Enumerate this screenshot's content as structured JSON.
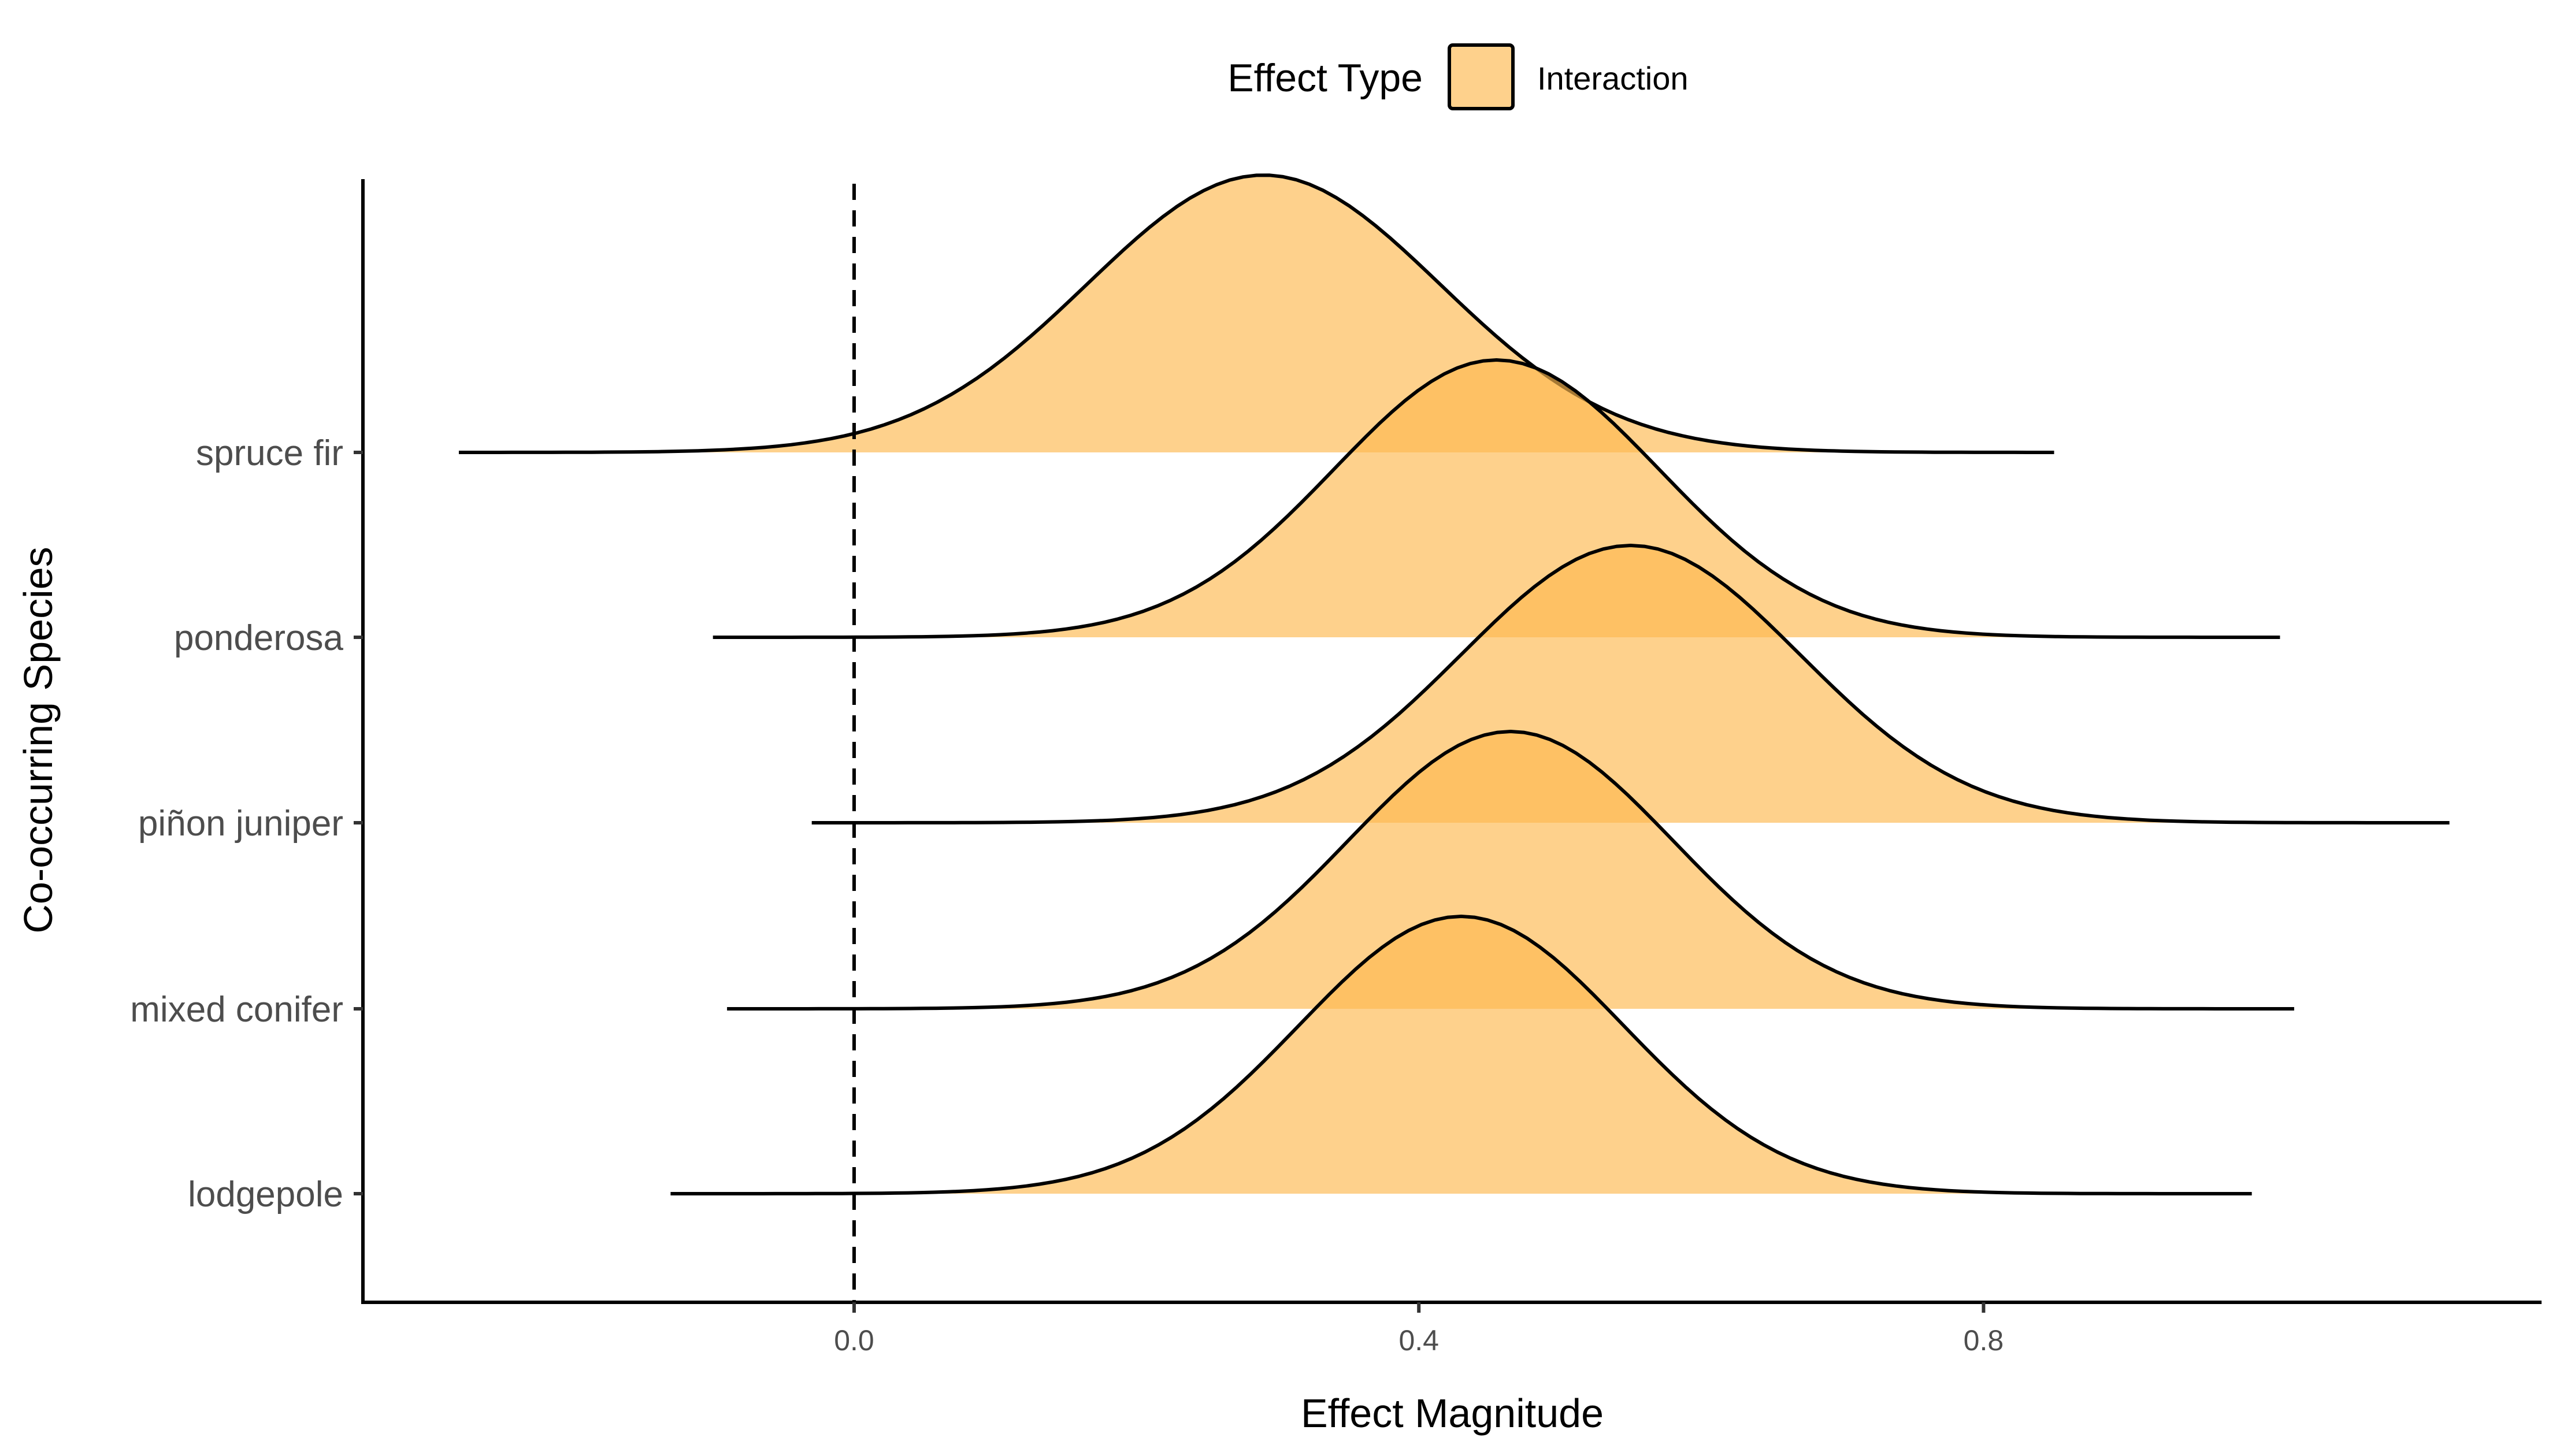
{
  "chart_data": {
    "type": "ridgeline",
    "title": "",
    "xlabel": "Effect Magnitude",
    "ylabel": "Co-occurring Species",
    "xlim": [
      -0.35,
      1.2
    ],
    "x_ticks": [
      0.0,
      0.4,
      0.8
    ],
    "x_tick_labels": [
      "0.0",
      "0.4",
      "0.8"
    ],
    "reference_line": {
      "x": 0.0,
      "style": "dashed"
    },
    "legend": {
      "title": "Effect Type",
      "position": "top",
      "entries": [
        {
          "label": "Interaction",
          "color": "#fdb94e"
        }
      ]
    },
    "fill_color": "#fdb94e",
    "fill_opacity": 0.65,
    "grid": false,
    "categories": [
      "lodgepole",
      "mixed conifer",
      "piñon juniper",
      "ponderosa",
      "spruce fir"
    ],
    "series": [
      {
        "name": "spruce fir",
        "min": -0.28,
        "max": 0.85,
        "mode": 0.29,
        "sd": 0.125
      },
      {
        "name": "ponderosa",
        "min": -0.1,
        "max": 1.01,
        "mode": 0.455,
        "sd": 0.115
      },
      {
        "name": "piñon juniper",
        "min": -0.03,
        "max": 1.13,
        "mode": 0.55,
        "sd": 0.12
      },
      {
        "name": "mixed conifer",
        "min": -0.09,
        "max": 1.02,
        "mode": 0.465,
        "sd": 0.115
      },
      {
        "name": "lodgepole",
        "min": -0.13,
        "max": 0.99,
        "mode": 0.43,
        "sd": 0.115
      }
    ]
  }
}
